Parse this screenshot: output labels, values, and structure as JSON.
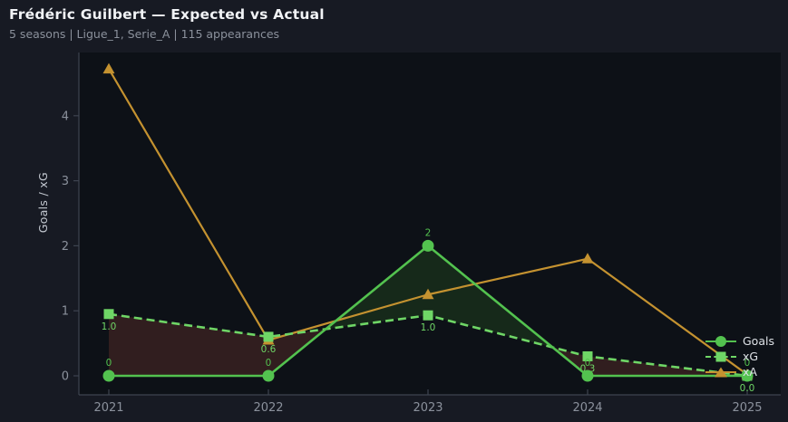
{
  "chart_data": {
    "type": "line",
    "title": "Frédéric Guilbert — Expected vs Actual",
    "subtitle": "5 seasons | Ligue_1, Serie_A | 115 appearances",
    "ylabel": "Goals / xG",
    "xlabel": "",
    "x": [
      "2021",
      "2022",
      "2023",
      "2024",
      "2025"
    ],
    "yticks": [
      "0",
      "1",
      "2",
      "3",
      "4"
    ],
    "ylim": [
      -0.3,
      4.97
    ],
    "grid": false,
    "legend_position": "lower right",
    "series": [
      {
        "name": "Goals",
        "values": [
          0,
          0,
          2,
          0,
          0
        ],
        "point_labels": [
          "0",
          "0",
          "2",
          "0",
          "0"
        ],
        "label_side": "above",
        "color": "#53c24f",
        "marker": "circle",
        "line_style": "solid"
      },
      {
        "name": "xG",
        "values": [
          0.95,
          0.6,
          0.93,
          0.3,
          0.0
        ],
        "point_labels": [
          "1.0",
          "0.6",
          "1.0",
          "0.3",
          "0.0"
        ],
        "label_side": "below",
        "color": "#6fd666",
        "marker": "square",
        "line_style": "dashed"
      },
      {
        "name": "xA",
        "values": [
          4.72,
          0.55,
          1.25,
          1.8,
          0.02
        ],
        "point_labels": null,
        "color": "#c49230",
        "marker": "triangle",
        "line_style": "solid"
      }
    ],
    "fill_between": {
      "upper": "xG",
      "lower": "Goals",
      "color_when_xg_above": "#311e1f",
      "color_when_goals_above": "#16291a"
    },
    "colors": {
      "page_background": "#171a23",
      "plot_background": "#0d1117",
      "spine": "#3e4450",
      "tick_label": "#8b919c"
    }
  }
}
